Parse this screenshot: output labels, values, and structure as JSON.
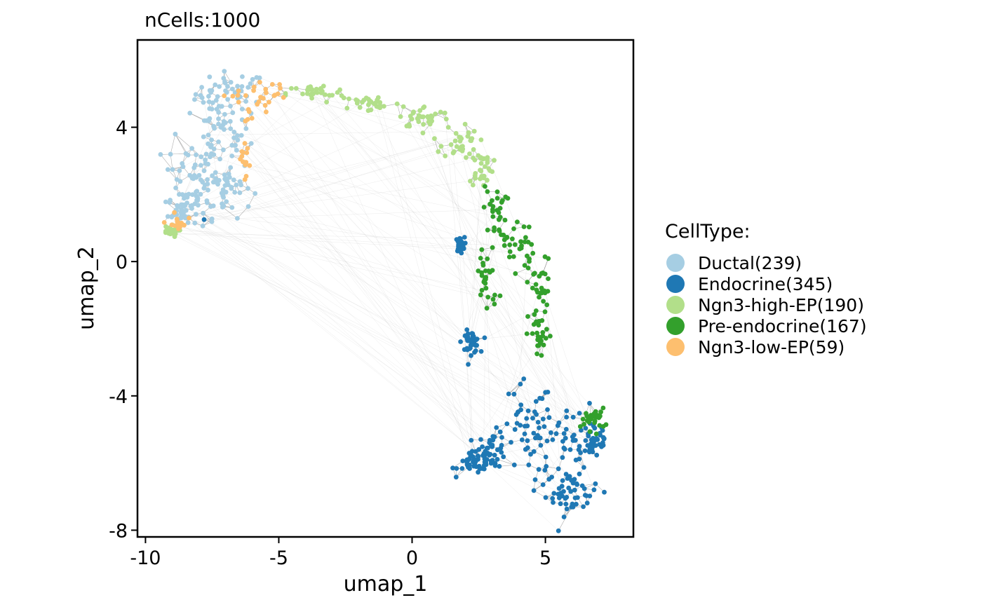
{
  "chart_data": {
    "type": "scatter",
    "title": "nCells:1000",
    "xlabel": "umap_1",
    "ylabel": "umap_2",
    "xlim": [
      -10.3,
      8.3
    ],
    "ylim": [
      -8.2,
      6.6
    ],
    "xticks": [
      -10,
      -5,
      0,
      5
    ],
    "xtick_labels": [
      "-10",
      "-5",
      "0",
      "5"
    ],
    "yticks": [
      4,
      0,
      -4,
      -8
    ],
    "ytick_labels": [
      "4",
      "0",
      "-4",
      "-8"
    ],
    "grid": false,
    "edges": true,
    "legend": {
      "title": "CellType:",
      "placement": "right",
      "entries": [
        {
          "label": "Ductal(239)",
          "color": "#a6cee3"
        },
        {
          "label": "Endocrine(345)",
          "color": "#1f78b4"
        },
        {
          "label": "Ngn3-high-EP(190)",
          "color": "#b2df8a"
        },
        {
          "label": "Pre-endocrine(167)",
          "color": "#33a02c"
        },
        {
          "label": "Ngn3-low-EP(59)",
          "color": "#fdbf6f"
        }
      ]
    },
    "series": [
      {
        "name": "Ductal(239)",
        "color": "#a6cee3",
        "count": 239,
        "regions": [
          [
            -6.8,
            5.0,
            1.2,
            0.6
          ],
          [
            -7.2,
            3.8,
            1.0,
            0.9
          ],
          [
            -8.3,
            2.6,
            0.9,
            1.0
          ],
          [
            -7.0,
            2.2,
            0.9,
            0.8
          ],
          [
            -8.6,
            1.5,
            0.5,
            0.4
          ]
        ]
      },
      {
        "name": "Endocrine(345)",
        "color": "#1f78b4",
        "count": 345,
        "regions": [
          [
            6.0,
            -6.9,
            0.9,
            0.6
          ],
          [
            5.6,
            -5.6,
            1.3,
            0.9
          ],
          [
            6.8,
            -5.3,
            0.6,
            0.6
          ],
          [
            4.3,
            -5.0,
            0.9,
            1.3
          ],
          [
            2.4,
            -6.0,
            0.6,
            0.3
          ],
          [
            3.0,
            -5.6,
            0.5,
            0.5
          ],
          [
            2.2,
            -2.4,
            0.3,
            0.3
          ],
          [
            1.8,
            0.5,
            0.15,
            0.2
          ]
        ]
      },
      {
        "name": "Ngn3-high-EP(190)",
        "color": "#b2df8a",
        "count": 190,
        "regions": [
          [
            -3.6,
            5.0,
            1.0,
            0.25
          ],
          [
            -1.5,
            4.7,
            1.0,
            0.25
          ],
          [
            0.5,
            4.3,
            0.9,
            0.3
          ],
          [
            1.8,
            3.6,
            0.6,
            0.5
          ],
          [
            2.6,
            2.8,
            0.4,
            0.5
          ],
          [
            -9.1,
            0.9,
            0.3,
            0.15
          ]
        ]
      },
      {
        "name": "Pre-endocrine(167)",
        "color": "#33a02c",
        "count": 167,
        "regions": [
          [
            3.1,
            1.5,
            0.4,
            0.7
          ],
          [
            4.0,
            0.5,
            0.5,
            0.7
          ],
          [
            4.8,
            -0.8,
            0.4,
            0.8
          ],
          [
            4.8,
            -2.2,
            0.4,
            0.7
          ],
          [
            2.8,
            -0.5,
            0.4,
            1.0
          ],
          [
            6.8,
            -4.7,
            0.4,
            0.3
          ]
        ]
      },
      {
        "name": "Ngn3-low-EP(59)",
        "color": "#fdbf6f",
        "count": 59,
        "regions": [
          [
            -5.3,
            5.0,
            0.6,
            0.3
          ],
          [
            -6.3,
            4.8,
            0.7,
            0.6
          ],
          [
            -8.8,
            1.1,
            0.3,
            0.3
          ],
          [
            -6.3,
            3.1,
            0.4,
            0.5
          ]
        ]
      }
    ],
    "outlier_points": [
      [
        -7.8,
        1.25,
        "Endocrine(345)"
      ]
    ]
  }
}
